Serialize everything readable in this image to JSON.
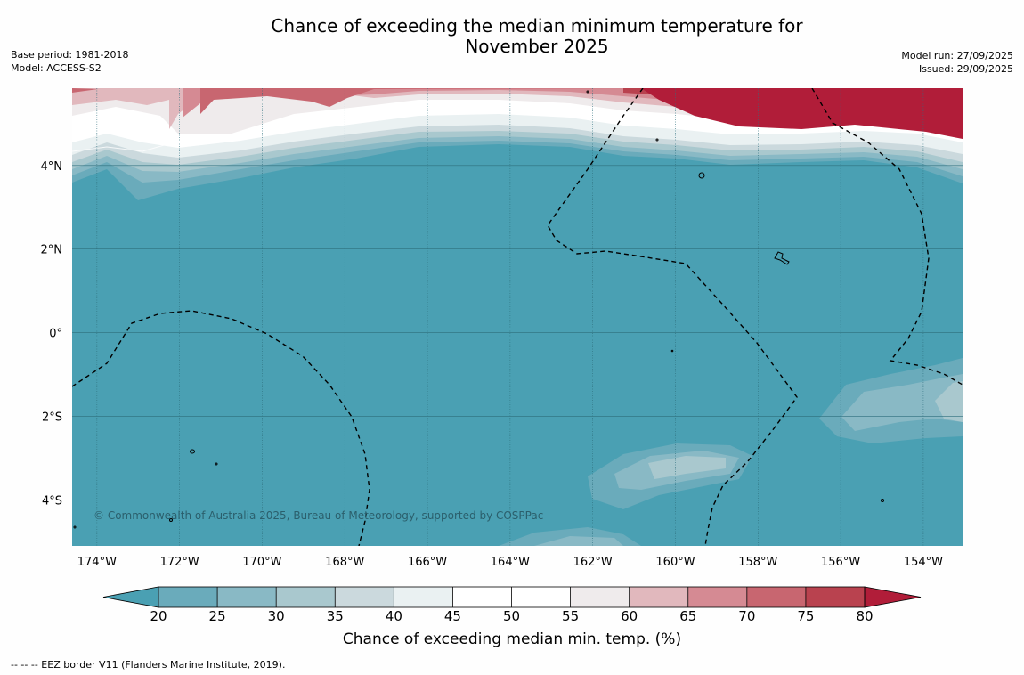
{
  "title": {
    "line1": "Chance of exceeding the median minimum temperature for",
    "line2": "November 2025"
  },
  "meta_left": {
    "base_period": "Base period: 1981-2018",
    "model": "Model: ACCESS-S2"
  },
  "meta_right": {
    "model_run": "Model run: 27/09/2025",
    "issued": "Issued: 29/09/2025"
  },
  "copyright": "© Commonwealth of Australia 2025, Bureau of Meteorology, supported by COSPPac",
  "map": {
    "lat_labels": [
      "4°N",
      "2°N",
      "0°",
      "2°S",
      "4°S"
    ],
    "lon_labels": [
      "174°W",
      "172°W",
      "170°W",
      "168°W",
      "166°W",
      "164°W",
      "162°W",
      "160°W",
      "158°W",
      "156°W",
      "154°W"
    ],
    "lat_values": [
      4,
      2,
      0,
      -2,
      -4
    ],
    "lon_values": [
      -174,
      -172,
      -170,
      -168,
      -166,
      -164,
      -162,
      -160,
      -158,
      -156,
      -154
    ],
    "extent": {
      "lon_min": -174.6,
      "lon_max": -153.05,
      "lat_min": -5.1,
      "lat_max": 5.85
    }
  },
  "colorbar": {
    "ticks": [
      "20",
      "25",
      "30",
      "35",
      "40",
      "45",
      "50",
      "55",
      "60",
      "65",
      "70",
      "75",
      "80"
    ],
    "colors": [
      "#4aa0b3",
      "#6aabbb",
      "#89b9c5",
      "#a9c8ce",
      "#cbd9dd",
      "#eaf1f2",
      "#ffffff",
      "#ffffff",
      "#efebec",
      "#e1b8bd",
      "#d58a93",
      "#c86670",
      "#b9424f",
      "#b11d39"
    ],
    "label": "Chance of exceeding median min. temp. (%)"
  },
  "footnote": "--  --  -- EEZ border V11 (Flanders Marine Institute, 2019)."
}
